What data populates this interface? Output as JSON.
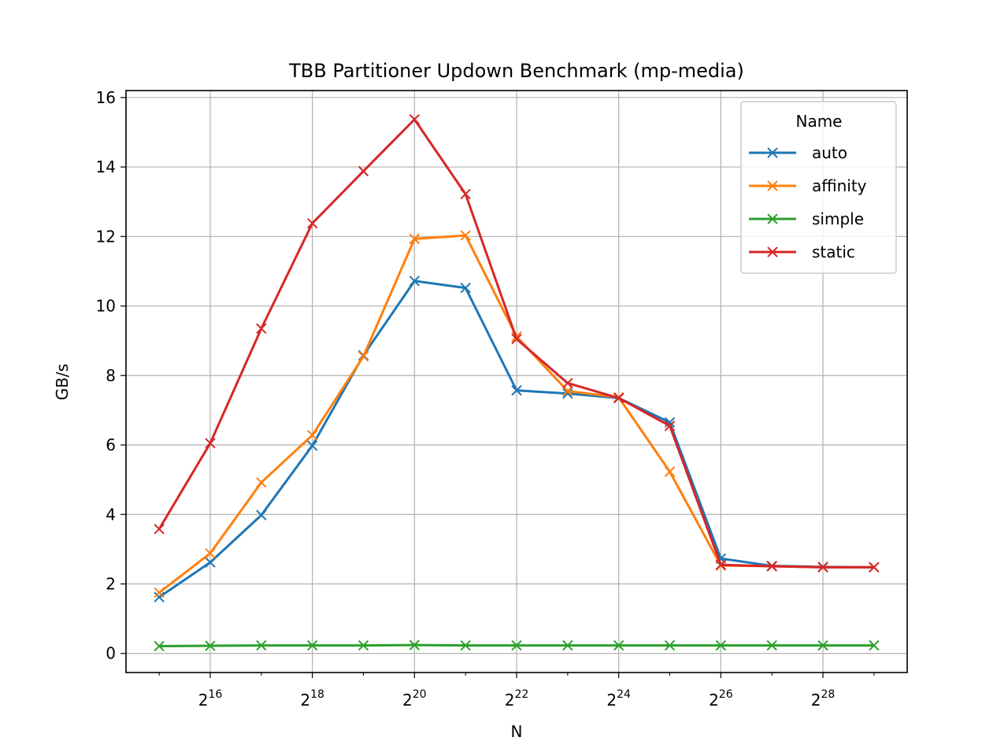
{
  "chart_data": {
    "type": "line",
    "title": "TBB Partitioner Updown Benchmark (mp-media)",
    "xlabel": "N",
    "ylabel": "GB/s",
    "xscale": "log2",
    "x_exponents": [
      15,
      16,
      17,
      18,
      19,
      20,
      21,
      22,
      23,
      24,
      25,
      26,
      27,
      28,
      29
    ],
    "xlim_exponent": [
      14.35,
      29.65
    ],
    "xtick_base": "2",
    "xtick_exponents": [
      "16",
      "18",
      "20",
      "22",
      "24",
      "26",
      "28"
    ],
    "ylim": [
      -0.55,
      16.2
    ],
    "yticks": [
      "0",
      "2",
      "4",
      "6",
      "8",
      "10",
      "12",
      "14",
      "16"
    ],
    "grid": true,
    "marker": "x",
    "legend": {
      "title": "Name",
      "placement": "top-right"
    },
    "series": [
      {
        "name": "auto",
        "color": "#1f77b4",
        "values": [
          1.62,
          2.62,
          3.98,
          5.98,
          8.58,
          10.72,
          10.52,
          7.57,
          7.48,
          7.35,
          6.65,
          2.73,
          2.52,
          2.49,
          2.48
        ]
      },
      {
        "name": "affinity",
        "color": "#ff7f0e",
        "values": [
          1.75,
          2.88,
          4.92,
          6.28,
          8.55,
          11.93,
          12.03,
          9.12,
          7.55,
          7.37,
          5.23,
          2.53,
          2.51,
          2.48,
          2.48
        ]
      },
      {
        "name": "simple",
        "color": "#2ca02c",
        "values": [
          0.21,
          0.22,
          0.23,
          0.23,
          0.23,
          0.24,
          0.23,
          0.23,
          0.23,
          0.23,
          0.23,
          0.23,
          0.23,
          0.23,
          0.23
        ]
      },
      {
        "name": "static",
        "color": "#d62728",
        "values": [
          3.58,
          6.05,
          9.35,
          12.38,
          13.88,
          15.37,
          13.22,
          9.05,
          7.78,
          7.35,
          6.55,
          2.55,
          2.51,
          2.48,
          2.48
        ]
      }
    ]
  }
}
